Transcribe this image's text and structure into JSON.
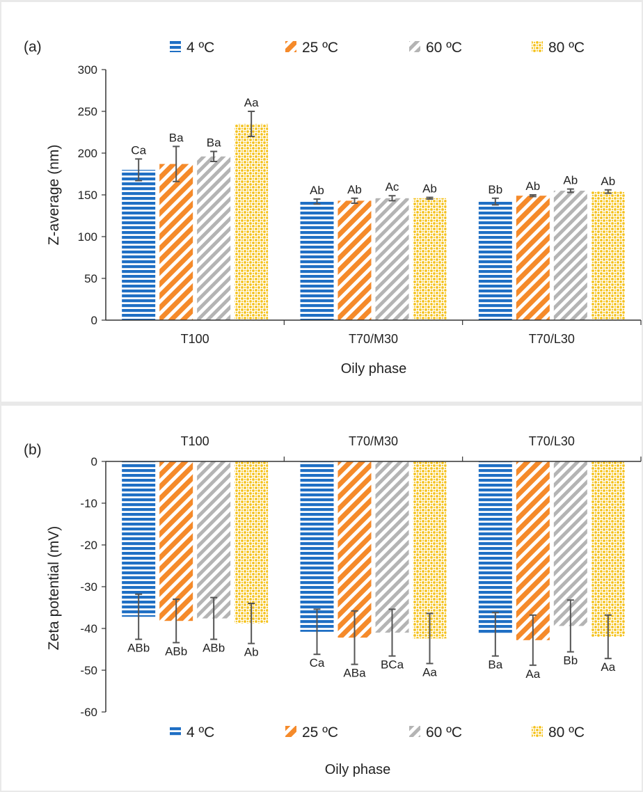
{
  "chart_data": [
    {
      "panel_label": "(a)",
      "type": "bar",
      "title": "",
      "xlabel": "Oily phase",
      "ylabel": "Z-average (nm)",
      "ylim": [
        0,
        300
      ],
      "yticks": [
        0,
        50,
        100,
        150,
        200,
        250,
        300
      ],
      "grid": false,
      "legend_position": "top",
      "categories": [
        "T100",
        "T70/M30",
        "T70/L30"
      ],
      "series": [
        {
          "name": "4 ºC",
          "pattern": "horizontal-stripes",
          "color": "#1f6fc4",
          "values": [
            180,
            142,
            142
          ],
          "errors": [
            13,
            3,
            4
          ],
          "labels": [
            "Ca",
            "Ab",
            "Bb"
          ]
        },
        {
          "name": "25 ºC",
          "pattern": "diagonal-stripes",
          "color": "#f58a2a",
          "values": [
            187,
            143,
            149
          ],
          "errors": [
            21,
            3,
            1
          ],
          "labels": [
            "Ba",
            "Ab",
            "Ab"
          ]
        },
        {
          "name": "60 ºC",
          "pattern": "diagonal-stripes-light",
          "color": "#b4b4b4",
          "values": [
            196,
            146,
            155
          ],
          "errors": [
            6,
            3,
            2
          ],
          "labels": [
            "Ba",
            "Ac",
            "Ab"
          ]
        },
        {
          "name": "80 ºC",
          "pattern": "dots",
          "color": "#f5c21b",
          "values": [
            235,
            146,
            154
          ],
          "errors": [
            15,
            1,
            2
          ],
          "labels": [
            "Aa",
            "Ab",
            "Ab"
          ]
        }
      ]
    },
    {
      "panel_label": "(b)",
      "type": "bar",
      "title": "",
      "xlabel": "Oily phase",
      "ylabel": "Zeta potential (mV)",
      "ylim": [
        -60,
        0
      ],
      "yticks": [
        0,
        -10,
        -20,
        -30,
        -40,
        -50,
        -60
      ],
      "grid": false,
      "legend_position": "bottom",
      "categories": [
        "T100",
        "T70/M30",
        "T70/L30"
      ],
      "series": [
        {
          "name": "4 ºC",
          "pattern": "horizontal-stripes",
          "color": "#1f6fc4",
          "values": [
            -37.2,
            -40.8,
            -41.4
          ],
          "errors": [
            5.4,
            5.4,
            5.2
          ],
          "labels": [
            "ABb",
            "Ca",
            "Ba"
          ]
        },
        {
          "name": "25 ºC",
          "pattern": "diagonal-stripes",
          "color": "#f58a2a",
          "values": [
            -38.2,
            -42.2,
            -42.8
          ],
          "errors": [
            5.2,
            6.4,
            6.0
          ],
          "labels": [
            "ABb",
            "ABa",
            "Aa"
          ]
        },
        {
          "name": "60 ºC",
          "pattern": "diagonal-stripes-light",
          "color": "#b4b4b4",
          "values": [
            -37.6,
            -41.0,
            -39.4
          ],
          "errors": [
            5.0,
            5.6,
            6.2
          ],
          "labels": [
            "ABb",
            "BCa",
            "Bb"
          ]
        },
        {
          "name": "80 ºC",
          "pattern": "dots",
          "color": "#f5c21b",
          "values": [
            -38.8,
            -42.4,
            -42.0
          ],
          "errors": [
            4.8,
            6.0,
            5.2
          ],
          "labels": [
            "Ab",
            "Aa",
            "Aa"
          ]
        }
      ]
    }
  ]
}
